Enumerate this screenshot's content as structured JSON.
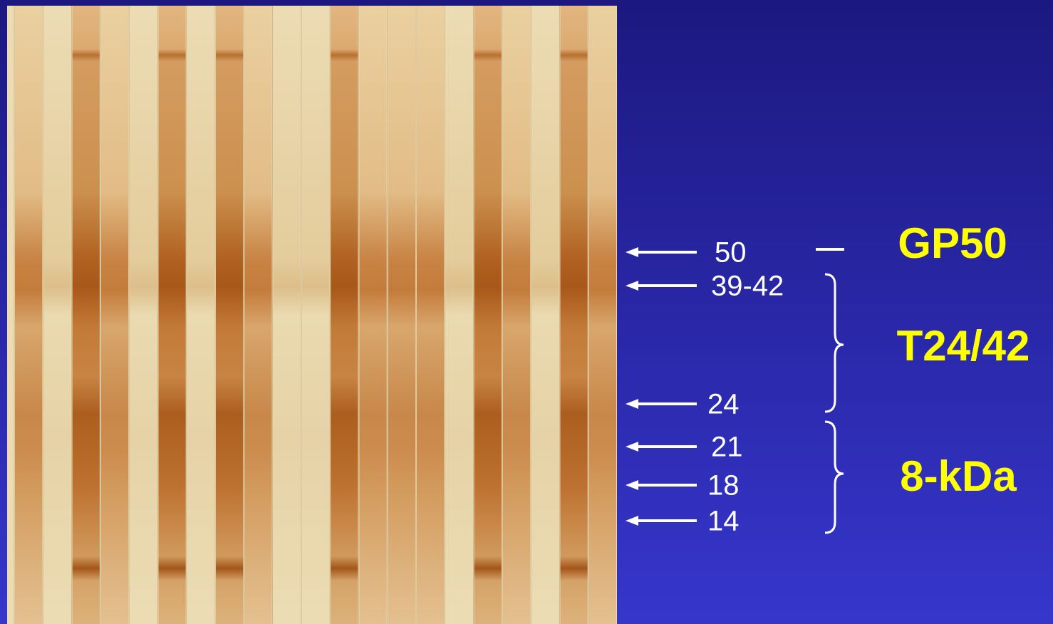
{
  "markers": [
    {
      "label": "50"
    },
    {
      "label": "39-42"
    },
    {
      "label": "24"
    },
    {
      "label": "21"
    },
    {
      "label": "18"
    },
    {
      "label": "14"
    }
  ],
  "groups": [
    {
      "label": "GP50"
    },
    {
      "label": "T24/42"
    },
    {
      "label": "8-kDa"
    }
  ]
}
